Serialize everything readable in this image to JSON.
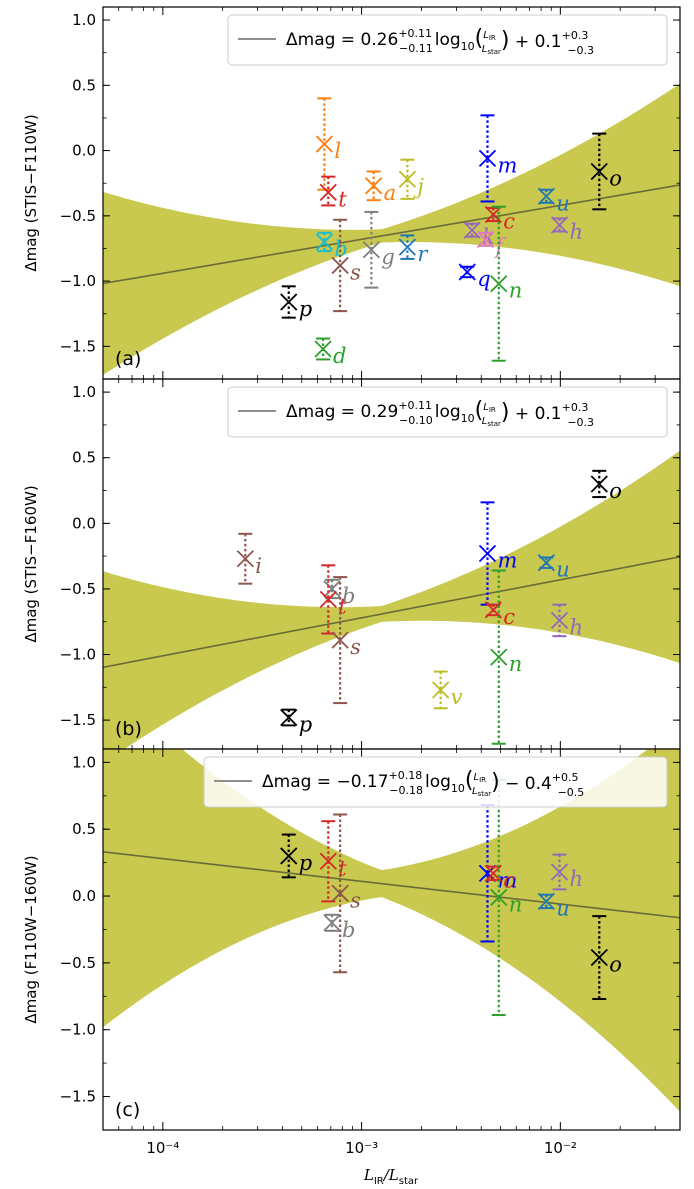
{
  "colors": {
    "band_outer": "#ebe9b3",
    "band_mid": "#dcdc86",
    "band_inner": "#c8c94e",
    "fit_line": "#6b6b3a",
    "legend_line": "#7f7f7f"
  },
  "chart_data": {
    "type": "scatter",
    "shared": {
      "xlabel": "L_IR/L_star",
      "xscale": "log",
      "xlim": [
        5e-05,
        0.04
      ],
      "x_ticks": [
        "10⁻⁴",
        "10⁻³",
        "10⁻²"
      ],
      "y_ticks": [
        "−1.5",
        "−1.0",
        "−0.5",
        "0.0",
        "0.5",
        "1.0"
      ]
    },
    "panels": [
      {
        "tag": "(a)",
        "ylabel": "Δmag (STIS−F110W)",
        "ylim": [
          -1.75,
          1.1
        ],
        "legend": {
          "prefix": "Δmag = 0.26",
          "sup1": "+0.11",
          "sub1": "−0.11",
          "mid": "log",
          "frac": "L_IR/L_star",
          "suffix": "+ 0.1",
          "sup2": "+0.3",
          "sub2": "−0.3"
        },
        "fit": {
          "slope": 0.26,
          "intercept": 0.1
        },
        "band_widths": [
          [
            0.05,
            0.21,
            0.52
          ],
          [
            0.04,
            0.16,
            0.32
          ],
          [
            0.02,
            0.09,
            0.16
          ]
        ],
        "points": [
          {
            "label": "l",
            "x": 0.00065,
            "y": 0.05,
            "yerr": [
              0.35,
              0.35
            ],
            "color": "#ff7f0e"
          },
          {
            "label": "t",
            "x": 0.00068,
            "y": -0.32,
            "yerr": [
              0.12,
              0.1
            ],
            "color": "#d62728"
          },
          {
            "label": "a",
            "x": 0.00115,
            "y": -0.27,
            "yerr": [
              0.11,
              0.11
            ],
            "color": "#ff7f0e"
          },
          {
            "label": "j",
            "x": 0.0017,
            "y": -0.22,
            "yerr": [
              0.15,
              0.15
            ],
            "color": "#bcbd22"
          },
          {
            "label": "m",
            "x": 0.0043,
            "y": -0.06,
            "yerr": [
              0.33,
              0.33
            ],
            "color": "#0000ff"
          },
          {
            "label": "o",
            "x": 0.0157,
            "y": -0.16,
            "yerr": [
              0.29,
              0.29
            ],
            "color": "#000000"
          },
          {
            "label": "u",
            "x": 0.0085,
            "y": -0.35,
            "yerr": [
              0.05,
              0.05
            ],
            "color": "#1f77b4"
          },
          {
            "label": "c",
            "x": 0.0046,
            "y": -0.49,
            "yerr": [
              0.05,
              0.05
            ],
            "color": "#d62728"
          },
          {
            "label": "b",
            "x": 0.00065,
            "y": -0.7,
            "yerr": [
              0.07,
              0.07
            ],
            "color": "#17becf"
          },
          {
            "label": "s",
            "x": 0.00078,
            "y": -0.88,
            "yerr": [
              0.35,
              0.35
            ],
            "color": "#8c564b"
          },
          {
            "label": "g",
            "x": 0.00112,
            "y": -0.76,
            "yerr": [
              0.29,
              0.29
            ],
            "color": "#7f7f7f"
          },
          {
            "label": "r",
            "x": 0.0017,
            "y": -0.74,
            "yerr": [
              0.09,
              0.09
            ],
            "color": "#1f77b4"
          },
          {
            "label": "k",
            "x": 0.0036,
            "y": -0.61,
            "yerr": [
              0.05,
              0.05
            ],
            "color": "#9467bd"
          },
          {
            "label": "f",
            "x": 0.0042,
            "y": -0.68,
            "yerr": [
              0.05,
              0.05
            ],
            "color": "#e377c2"
          },
          {
            "label": "h",
            "x": 0.0099,
            "y": -0.57,
            "yerr": [
              0.05,
              0.05
            ],
            "color": "#9467bd"
          },
          {
            "label": "q",
            "x": 0.0034,
            "y": -0.93,
            "yerr": [
              0.04,
              0.04
            ],
            "color": "#0000ff"
          },
          {
            "label": "n",
            "x": 0.0049,
            "y": -1.02,
            "yerr": [
              0.59,
              0.59
            ],
            "color": "#2ca02c"
          },
          {
            "label": "p",
            "x": 0.00043,
            "y": -1.16,
            "yerr": [
              0.12,
              0.12
            ],
            "color": "#000000"
          },
          {
            "label": "d",
            "x": 0.00064,
            "y": -1.52,
            "yerr": [
              0.08,
              0.08
            ],
            "color": "#2ca02c"
          }
        ]
      },
      {
        "tag": "(b)",
        "ylabel": "Δmag (STIS−F160W)",
        "ylim": [
          -1.72,
          1.1
        ],
        "legend": {
          "prefix": "Δmag = 0.29",
          "sup1": "+0.11",
          "sub1": "−0.10",
          "mid": "log",
          "frac": "L_IR/L_star",
          "suffix": "+ 0.1",
          "sup2": "+0.3",
          "sub2": "−0.3"
        },
        "fit": {
          "slope": 0.29,
          "intercept": 0.15
        },
        "band_widths": [
          [
            0.06,
            0.21,
            0.55
          ],
          [
            0.05,
            0.17,
            0.34
          ],
          [
            0.02,
            0.09,
            0.17
          ]
        ],
        "points": [
          {
            "label": "o",
            "x": 0.0157,
            "y": 0.3,
            "yerr": [
              0.1,
              0.1
            ],
            "color": "#000000"
          },
          {
            "label": "i",
            "x": 0.00026,
            "y": -0.27,
            "yerr": [
              0.19,
              0.19
            ],
            "color": "#8c564b"
          },
          {
            "label": "m",
            "x": 0.0043,
            "y": -0.23,
            "yerr": [
              0.39,
              0.39
            ],
            "color": "#0000ff"
          },
          {
            "label": "u",
            "x": 0.0085,
            "y": -0.3,
            "yerr": [
              0.04,
              0.04
            ],
            "color": "#1f77b4"
          },
          {
            "label": "b",
            "x": 0.00071,
            "y": -0.5,
            "yerr": [
              0.07,
              0.07
            ],
            "color": "#7f7f7f"
          },
          {
            "label": "t",
            "x": 0.00068,
            "y": -0.58,
            "yerr": [
              0.26,
              0.26
            ],
            "color": "#d62728"
          },
          {
            "label": "c",
            "x": 0.0046,
            "y": -0.66,
            "yerr": [
              0.04,
              0.04
            ],
            "color": "#d62728"
          },
          {
            "label": "h",
            "x": 0.0099,
            "y": -0.74,
            "yerr": [
              0.12,
              0.12
            ],
            "color": "#9467bd"
          },
          {
            "label": "s",
            "x": 0.00078,
            "y": -0.89,
            "yerr": [
              0.48,
              0.48
            ],
            "color": "#8c564b"
          },
          {
            "label": "n",
            "x": 0.0049,
            "y": -1.02,
            "yerr": [
              0.66,
              0.66
            ],
            "color": "#2ca02c"
          },
          {
            "label": "v",
            "x": 0.0025,
            "y": -1.27,
            "yerr": [
              0.14,
              0.14
            ],
            "color": "#bcbd22"
          },
          {
            "label": "p",
            "x": 0.00043,
            "y": -1.48,
            "yerr": [
              0.06,
              0.06
            ],
            "color": "#000000"
          }
        ]
      },
      {
        "tag": "(c)",
        "ylabel": "Δmag (F110W−160W)",
        "ylim": [
          -1.75,
          1.1
        ],
        "legend": {
          "prefix": "Δmag = −0.17",
          "sup1": "+0.18",
          "sub1": "−0.18",
          "mid": "log",
          "frac": "L_IR/L_star",
          "suffix": "− 0.4",
          "sup2": "+0.5",
          "sub2": "−0.5"
        },
        "fit": {
          "slope": -0.17,
          "intercept": -0.4
        },
        "band_widths": [
          [
            0.1,
            0.4,
            0.95
          ],
          [
            0.08,
            0.3,
            0.6
          ],
          [
            0.04,
            0.16,
            0.3
          ]
        ],
        "points": [
          {
            "label": "p",
            "x": 0.00043,
            "y": 0.3,
            "yerr": [
              0.16,
              0.16
            ],
            "color": "#000000"
          },
          {
            "label": "t",
            "x": 0.00068,
            "y": 0.26,
            "yerr": [
              0.3,
              0.3
            ],
            "color": "#d62728"
          },
          {
            "label": "s",
            "x": 0.00078,
            "y": 0.02,
            "yerr": [
              0.59,
              0.59
            ],
            "color": "#8c564b"
          },
          {
            "label": "b",
            "x": 0.00071,
            "y": -0.2,
            "yerr": [
              0.06,
              0.06
            ],
            "color": "#7f7f7f"
          },
          {
            "label": "m",
            "x": 0.0043,
            "y": 0.17,
            "yerr": [
              0.51,
              0.51
            ],
            "color": "#0000ff"
          },
          {
            "label": "c",
            "x": 0.0046,
            "y": 0.17,
            "yerr": [
              0.05,
              0.05
            ],
            "color": "#d62728"
          },
          {
            "label": "n",
            "x": 0.0049,
            "y": -0.01,
            "yerr": [
              0.88,
              0.88
            ],
            "color": "#2ca02c"
          },
          {
            "label": "h",
            "x": 0.0099,
            "y": 0.18,
            "yerr": [
              0.13,
              0.13
            ],
            "color": "#9467bd"
          },
          {
            "label": "u",
            "x": 0.0085,
            "y": -0.04,
            "yerr": [
              0.05,
              0.05
            ],
            "color": "#1f77b4"
          },
          {
            "label": "o",
            "x": 0.0157,
            "y": -0.46,
            "yerr": [
              0.31,
              0.31
            ],
            "color": "#000000"
          }
        ]
      }
    ]
  }
}
